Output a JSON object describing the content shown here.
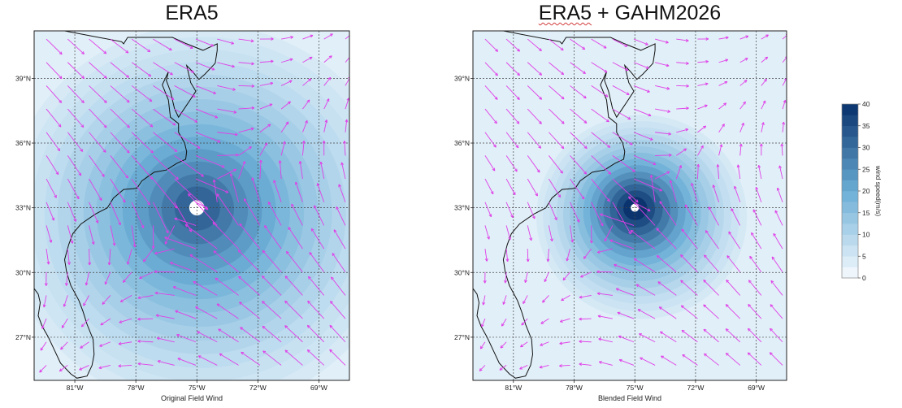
{
  "panels": [
    {
      "title": "ERA5",
      "title_plus": "",
      "title_extra": "",
      "xlabel": "Original Field Wind",
      "center": {
        "lon": -75.0,
        "lat": 33.0
      },
      "rmax_deg": 1.5,
      "peak_speed": 32
    },
    {
      "title": "ERA5",
      "title_plus": " + ",
      "title_extra": "GAHM2026",
      "xlabel": "Blended Field Wind",
      "center": {
        "lon": -75.0,
        "lat": 33.0
      },
      "rmax_deg": 0.8,
      "peak_speed": 40
    }
  ],
  "map": {
    "lon_range": [
      -83.0,
      -67.5
    ],
    "lat_range": [
      25.0,
      41.2
    ],
    "lon_ticks": [
      -81,
      -78,
      -75,
      -72,
      -69
    ],
    "lon_tick_labels": [
      "81°W",
      "78°W",
      "75°W",
      "72°W",
      "69°W"
    ],
    "lat_ticks": [
      27,
      30,
      33,
      36,
      39
    ],
    "lat_tick_labels": [
      "27°N",
      "30°N",
      "33°N",
      "36°N",
      "39°N"
    ],
    "grid": true,
    "arrow_color": "#e040e8",
    "coast_color": "#111111"
  },
  "colorbar": {
    "label": "wind speed(m/s)",
    "min": 0,
    "max": 40,
    "tick_values": [
      0,
      5,
      10,
      15,
      20,
      25,
      30,
      35,
      40
    ],
    "tick_labels": [
      "0",
      "5",
      "10",
      "15",
      "20",
      "25",
      "30",
      "35",
      "40"
    ],
    "color_low": "#f7fbff",
    "color_high": "#08306b"
  }
}
